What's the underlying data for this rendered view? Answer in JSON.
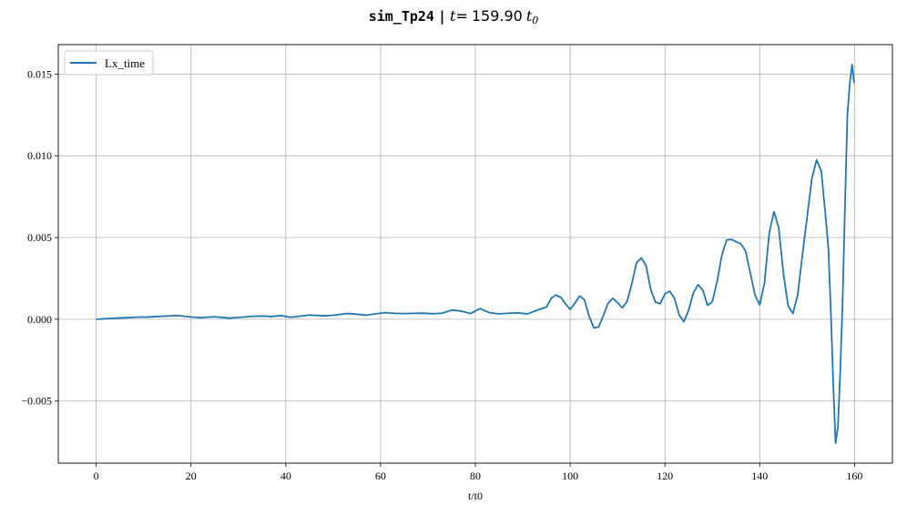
{
  "figure": {
    "title_run_name": "sim_Tp24",
    "title_separator": "|",
    "title_t_symbol": "t",
    "title_equals": "=",
    "title_time_value": "159.90",
    "title_t0_symbol": "t",
    "title_t0_subscript": "0"
  },
  "chart_data": {
    "type": "line",
    "xlabel": "t/t0",
    "ylabel": "",
    "xlim": [
      -8,
      168
    ],
    "ylim": [
      -0.0088,
      0.0168
    ],
    "xticks": [
      0,
      20,
      40,
      60,
      80,
      100,
      120,
      140,
      160
    ],
    "xtick_labels": [
      "0",
      "20",
      "40",
      "60",
      "80",
      "100",
      "120",
      "140",
      "160"
    ],
    "yticks": [
      -0.005,
      0.0,
      0.005,
      0.01,
      0.015
    ],
    "ytick_labels": [
      "−0.005",
      "0.000",
      "0.005",
      "0.010",
      "0.015"
    ],
    "grid": true,
    "legend_position": "upper-left",
    "series": [
      {
        "name": "Lx_time",
        "color": "#1f77b4",
        "x": [
          0,
          3,
          5,
          7,
          9,
          11,
          13,
          15,
          17,
          20,
          22,
          25,
          28,
          30,
          33,
          35,
          37,
          39,
          41,
          43,
          45,
          48,
          50,
          53,
          55,
          57,
          59,
          61,
          63,
          65,
          67,
          69,
          71,
          73,
          75,
          77,
          79,
          81,
          83,
          85,
          87,
          89,
          91,
          93,
          95,
          96,
          97,
          98,
          99,
          100,
          101,
          102,
          103,
          104,
          105,
          106,
          107,
          108,
          109,
          110,
          111,
          112,
          113,
          114,
          115,
          116,
          117,
          118,
          119,
          120,
          121,
          122,
          123,
          124,
          125,
          126,
          127,
          128,
          129,
          130,
          131,
          132,
          133,
          134,
          135,
          136,
          137,
          138,
          139,
          140,
          141,
          142,
          143,
          144,
          145,
          146,
          147,
          148,
          149,
          150,
          151,
          152,
          153,
          154,
          154.5,
          155,
          155.5,
          156,
          156.5,
          157,
          157.5,
          158,
          158.5,
          159,
          159.5,
          159.9
        ],
        "y": [
          0.0,
          3e-05,
          5e-05,
          6e-05,
          8e-05,
          0.0001,
          0.00013,
          0.00015,
          0.00018,
          0.0002,
          0.00016,
          0.00012,
          0.00011,
          0.00015,
          0.00014,
          0.00016,
          0.00013,
          0.00018,
          8e-05,
          0.00015,
          0.00022,
          0.00025,
          0.00028,
          0.00032,
          0.00028,
          0.00022,
          0.00031,
          0.00038,
          0.00034,
          0.00033,
          0.00035,
          0.00036,
          0.00033,
          0.00037,
          0.00056,
          0.0005,
          0.00035,
          0.00065,
          0.0004,
          0.00033,
          0.00037,
          0.00039,
          0.00033,
          0.00055,
          0.00075,
          0.00128,
          0.00148,
          0.00135,
          0.00095,
          0.0006,
          0.00098,
          0.00142,
          0.0012,
          0.00018,
          -0.00052,
          -0.00048,
          0.00022,
          0.00098,
          0.00128,
          0.00102,
          0.0007,
          0.00108,
          0.00215,
          0.00345,
          0.00375,
          0.0033,
          0.00182,
          0.00105,
          0.00095,
          0.00155,
          0.00172,
          0.00128,
          0.00028,
          -0.00015,
          0.00055,
          0.00162,
          0.00212,
          0.00178,
          0.00085,
          0.00108,
          0.0023,
          0.0039,
          0.00485,
          0.00488,
          0.00475,
          0.00462,
          0.00418,
          0.00285,
          0.00148,
          0.00088,
          0.0022,
          0.00525,
          0.00658,
          0.00562,
          0.0028,
          0.00082,
          0.00035,
          0.00148,
          0.0039,
          0.00625,
          0.0086,
          0.00975,
          0.00905,
          0.00598,
          0.00428,
          0.00052,
          -0.00385,
          -0.00758,
          -0.0066,
          -0.00315,
          0.0012,
          0.00705,
          0.01248,
          0.01445,
          0.01558,
          0.01445
        ]
      }
    ]
  }
}
